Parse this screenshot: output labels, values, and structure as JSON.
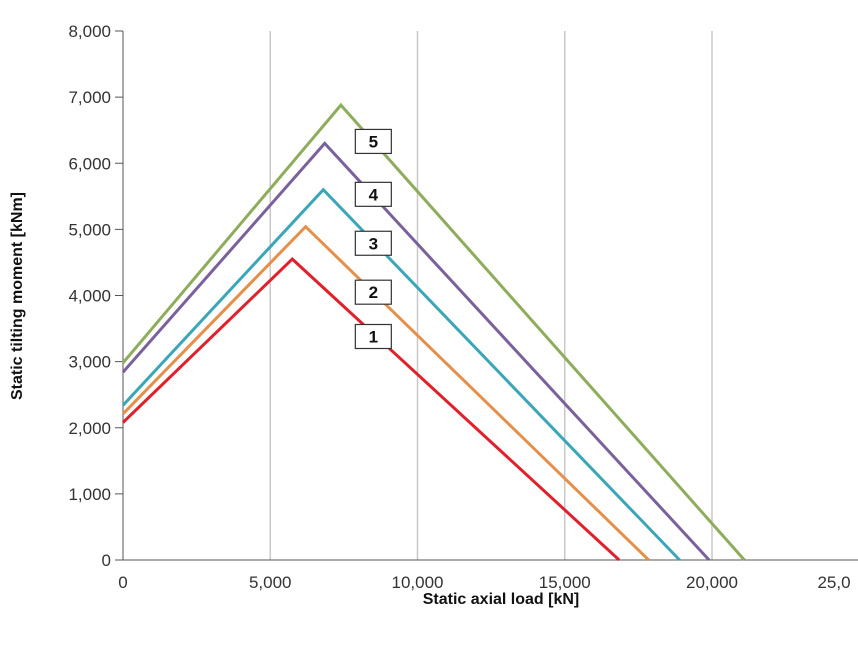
{
  "chart_data": {
    "type": "line",
    "title": "",
    "xlabel": "Static axial load [kN]",
    "ylabel": "Static tilting moment [kNm]",
    "xlim": [
      0,
      25000
    ],
    "ylim": [
      0,
      8000
    ],
    "x_ticks": [
      "0",
      "5,000",
      "10,000",
      "15,000",
      "20,000",
      "25,0"
    ],
    "y_ticks": [
      "0",
      "1,000",
      "2,000",
      "3,000",
      "4,000",
      "5,000",
      "6,000",
      "7,000",
      "8,000"
    ],
    "grid": "vertical",
    "series": [
      {
        "name": "1",
        "color": "#e2202b",
        "points": [
          [
            0,
            2080
          ],
          [
            5750,
            4550
          ],
          [
            16850,
            0
          ]
        ],
        "label_at": [
          8500,
          3380
        ]
      },
      {
        "name": "2",
        "color": "#e5904a",
        "points": [
          [
            0,
            2210
          ],
          [
            6200,
            5040
          ],
          [
            17850,
            0
          ]
        ],
        "label_at": [
          8500,
          4050
        ]
      },
      {
        "name": "3",
        "color": "#3ba6b8",
        "points": [
          [
            0,
            2340
          ],
          [
            6800,
            5600
          ],
          [
            18900,
            0
          ]
        ],
        "label_at": [
          8500,
          4790
        ]
      },
      {
        "name": "4",
        "color": "#7a619c",
        "points": [
          [
            0,
            2840
          ],
          [
            6850,
            6300
          ],
          [
            19900,
            0
          ]
        ],
        "label_at": [
          8500,
          5530
        ]
      },
      {
        "name": "5",
        "color": "#8ead5c",
        "points": [
          [
            0,
            2980
          ],
          [
            7400,
            6880
          ],
          [
            21100,
            0
          ]
        ],
        "label_at": [
          8500,
          6330
        ]
      }
    ]
  }
}
